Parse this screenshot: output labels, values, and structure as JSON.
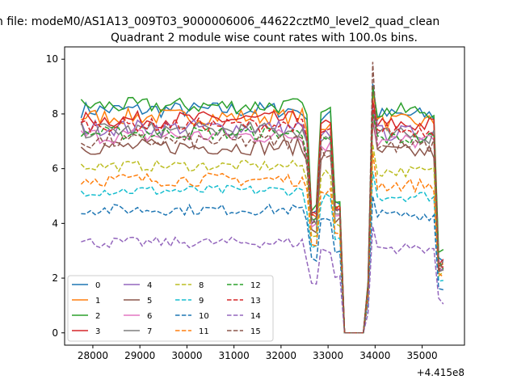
{
  "figure": {
    "suptitle": "n file: modeM0/AS1A13_009T03_9000006006_44622cztM0_level2_quad_clean",
    "offset_label": "+4.415e8"
  },
  "chart_data": {
    "type": "line",
    "title": "Quadrant 2 module wise count rates with 100.0s bins.",
    "xlabel": "",
    "ylabel": "",
    "x_offset": 441500000,
    "xlim": [
      27400,
      35900
    ],
    "ylim": [
      -0.45,
      10.45
    ],
    "xticks": [
      28000,
      29000,
      30000,
      31000,
      32000,
      33000,
      34000,
      35000
    ],
    "yticks": [
      0,
      2,
      4,
      6,
      8,
      10
    ],
    "grid": false,
    "legend": {
      "placement": "lower-left",
      "columns": 4
    },
    "series": [
      {
        "name": "0",
        "color": "#1f77b4",
        "dash": "solid",
        "base": 8.15,
        "noise": 0.3,
        "drop": 4.5,
        "high": 9.1
      },
      {
        "name": "1",
        "color": "#ff7f0e",
        "dash": "solid",
        "base": 7.9,
        "noise": 0.3,
        "drop": 4.3,
        "high": 8.8
      },
      {
        "name": "2",
        "color": "#2ca02c",
        "dash": "solid",
        "base": 8.3,
        "noise": 0.3,
        "drop": 4.6,
        "high": 9.0
      },
      {
        "name": "3",
        "color": "#d62728",
        "dash": "solid",
        "base": 7.8,
        "noise": 0.3,
        "drop": 4.3,
        "high": 8.5
      },
      {
        "name": "4",
        "color": "#9467bd",
        "dash": "solid",
        "base": 7.5,
        "noise": 0.3,
        "drop": 4.1,
        "high": 8.2
      },
      {
        "name": "5",
        "color": "#8c564b",
        "dash": "solid",
        "base": 6.8,
        "noise": 0.3,
        "drop": 3.8,
        "high": 7.8
      },
      {
        "name": "6",
        "color": "#e377c2",
        "dash": "solid",
        "base": 7.2,
        "noise": 0.3,
        "drop": 4.0,
        "high": 8.0
      },
      {
        "name": "7",
        "color": "#7f7f7f",
        "dash": "solid",
        "base": 7.4,
        "noise": 0.3,
        "drop": 4.1,
        "high": 8.1
      },
      {
        "name": "8",
        "color": "#bcbd22",
        "dash": "dashed",
        "base": 6.1,
        "noise": 0.2,
        "drop": 3.6,
        "high": 6.9
      },
      {
        "name": "9",
        "color": "#17becf",
        "dash": "dashed",
        "base": 5.2,
        "noise": 0.2,
        "drop": 3.1,
        "high": 5.9
      },
      {
        "name": "10",
        "color": "#1f77b4",
        "dash": "dashed",
        "base": 4.5,
        "noise": 0.2,
        "drop": 2.7,
        "high": 5.0
      },
      {
        "name": "11",
        "color": "#ff7f0e",
        "dash": "dashed",
        "base": 5.6,
        "noise": 0.25,
        "drop": 3.3,
        "high": 6.6
      },
      {
        "name": "12",
        "color": "#2ca02c",
        "dash": "dashed",
        "base": 7.3,
        "noise": 0.25,
        "drop": 4.2,
        "high": 8.0
      },
      {
        "name": "13",
        "color": "#d62728",
        "dash": "dashed",
        "base": 7.6,
        "noise": 0.25,
        "drop": 4.3,
        "high": 8.3
      },
      {
        "name": "14",
        "color": "#9467bd",
        "dash": "dashed",
        "base": 3.3,
        "noise": 0.2,
        "drop": 1.8,
        "high": 3.9
      },
      {
        "name": "15",
        "color": "#8c564b",
        "dash": "dashed",
        "base": 7.0,
        "noise": 0.3,
        "drop": 4.1,
        "high": 9.9
      }
    ]
  }
}
